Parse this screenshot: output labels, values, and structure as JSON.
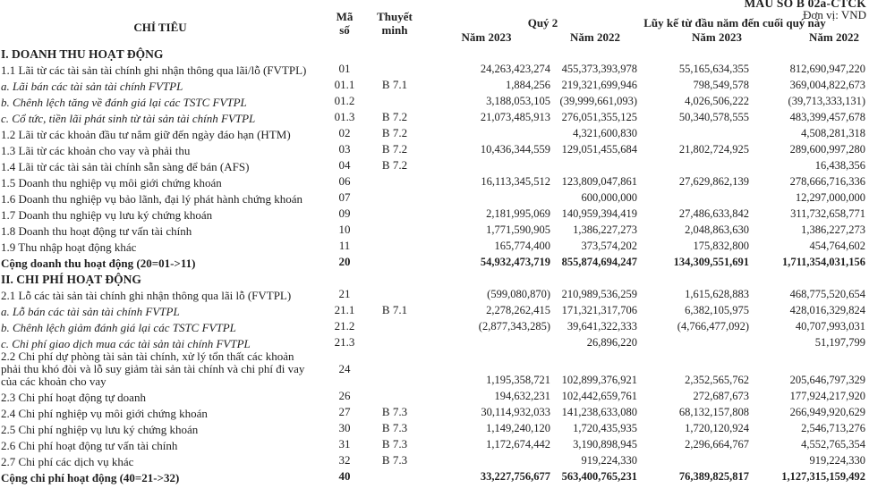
{
  "page": {
    "form_label": "MẪU SỐ B 02a-CTCK",
    "unit_label": "Đơn vị: VND",
    "text_color": "#1f1f1f",
    "background_color": "#ffffff"
  },
  "table": {
    "headers": {
      "criteria": "CHỈ TIÊU",
      "code_line1": "Mã",
      "code_line2": "số",
      "note_line1": "Thuyết",
      "note_line2": "minh",
      "group_q2": "Quý 2",
      "group_ytd": "Lũy kế từ đầu năm đến cuối quý này",
      "year_2023": "Năm 2023",
      "year_2022": "Năm 2022"
    },
    "rows": [
      {
        "style": "section",
        "label": "I. DOANH THU HOẠT ĐỘNG"
      },
      {
        "style": "item",
        "label": "1.1 Lãi từ các tài sản tài chính ghi nhận thông qua lãi/lỗ (FVTPL)",
        "code": "01",
        "q2_2023": "24,263,423,274",
        "q2_2022": "455,373,393,978",
        "ytd_2023": "55,165,634,355",
        "ytd_2022": "812,690,947,220"
      },
      {
        "style": "sub",
        "label": "a. Lãi bán các tài sản tài chính FVTPL",
        "code": "01.1",
        "note": "B 7.1",
        "q2_2023": "1,884,256",
        "q2_2022": "219,321,699,946",
        "ytd_2023": "798,549,578",
        "ytd_2022": "369,004,822,673"
      },
      {
        "style": "sub",
        "label": "b. Chênh lệch tăng về đánh giá lại các TSTC FVTPL",
        "code": "01.2",
        "q2_2023": "3,188,053,105",
        "q2_2022": "(39,999,661,093)",
        "ytd_2023": "4,026,506,222",
        "ytd_2022": "(39,713,333,131)"
      },
      {
        "style": "sub",
        "label": "c. Cổ tức, tiền lãi phát sinh từ tài sản tài chính FVTPL",
        "code": "01.3",
        "note": "B 7.2",
        "q2_2023": "21,073,485,913",
        "q2_2022": "276,051,355,125",
        "ytd_2023": "50,340,578,555",
        "ytd_2022": "483,399,457,678"
      },
      {
        "style": "item",
        "label": "1.2 Lãi từ các khoản đầu tư nắm giữ đến ngày đáo hạn (HTM)",
        "code": "02",
        "note": "B 7.2",
        "q2_2022": "4,321,600,830",
        "ytd_2022": "4,508,281,318"
      },
      {
        "style": "item",
        "label": "1.3 Lãi từ các khoản cho vay và phải thu",
        "code": "03",
        "note": "B 7.2",
        "q2_2023": "10,436,344,559",
        "q2_2022": "129,051,455,684",
        "ytd_2023": "21,802,724,925",
        "ytd_2022": "289,600,997,280"
      },
      {
        "style": "item",
        "label": "1.4 Lãi từ các tài sản tài chính sẵn sàng để bán (AFS)",
        "code": "04",
        "note": "B 7.2",
        "ytd_2022": "16,438,356"
      },
      {
        "style": "item",
        "label": "1.5 Doanh thu nghiệp vụ môi giới chứng khoán",
        "code": "06",
        "q2_2023": "16,113,345,512",
        "q2_2022": "123,809,047,861",
        "ytd_2023": "27,629,862,139",
        "ytd_2022": "278,666,716,336"
      },
      {
        "style": "item",
        "label": "1.6 Doanh thu nghiệp vụ bảo lãnh, đại lý phát hành chứng khoán",
        "code": "07",
        "q2_2022": "600,000,000",
        "ytd_2022": "12,297,000,000"
      },
      {
        "style": "item",
        "label": "1.7 Doanh thu nghiệp vụ lưu ký chứng khoán",
        "code": "09",
        "q2_2023": "2,181,995,069",
        "q2_2022": "140,959,394,419",
        "ytd_2023": "27,486,633,842",
        "ytd_2022": "311,732,658,771"
      },
      {
        "style": "item",
        "label": "1.8 Doanh thu hoạt động tư vấn tài chính",
        "code": "10",
        "q2_2023": "1,771,590,905",
        "q2_2022": "1,386,227,273",
        "ytd_2023": "2,048,863,630",
        "ytd_2022": "1,386,227,273"
      },
      {
        "style": "item",
        "label": "1.9 Thu nhập hoạt động khác",
        "code": "11",
        "q2_2023": "165,774,400",
        "q2_2022": "373,574,202",
        "ytd_2023": "175,832,800",
        "ytd_2022": "454,764,602"
      },
      {
        "style": "total",
        "label": "Cộng doanh thu hoạt động (20=01->11)",
        "code": "20",
        "q2_2023": "54,932,473,719",
        "q2_2022": "855,874,694,247",
        "ytd_2023": "134,309,551,691",
        "ytd_2022": "1,711,354,031,156"
      },
      {
        "style": "section",
        "label": "II. CHI PHÍ HOẠT ĐỘNG"
      },
      {
        "style": "item",
        "label": "2.1 Lỗ các tài sản tài chính ghi nhận thông qua lãi lỗ (FVTPL)",
        "code": "21",
        "q2_2023": "(599,080,870)",
        "q2_2022": "210,989,536,259",
        "ytd_2023": "1,615,628,883",
        "ytd_2022": "468,775,520,654"
      },
      {
        "style": "sub",
        "label": "a. Lỗ bán các tài sản tài chính FVTPL",
        "code": "21.1",
        "note": "B 7.1",
        "q2_2023": "2,278,262,415",
        "q2_2022": "171,321,317,706",
        "ytd_2023": "6,382,105,975",
        "ytd_2022": "428,016,329,824"
      },
      {
        "style": "sub",
        "label": "b. Chênh lệch giảm đánh giá lại các TSTC FVTPL",
        "code": "21.2",
        "q2_2023": "(2,877,343,285)",
        "q2_2022": "39,641,322,333",
        "ytd_2023": "(4,766,477,092)",
        "ytd_2022": "40,707,993,031"
      },
      {
        "style": "sub",
        "label": "c. Chi phí giao dịch mua các tài sản tài chính FVTPL",
        "code": "21.3",
        "q2_2022": "26,896,220",
        "ytd_2022": "51,197,799"
      },
      {
        "style": "item",
        "code_middle": true,
        "label": "2.2 Chi phí dự phòng tài sản tài chính, xử lý tổn thất các khoản phải thu khó đòi và lỗ suy giảm tài sản tài chính và chi phí đi vay của các khoản cho vay",
        "code": "24",
        "q2_2023": "1,195,358,721",
        "q2_2022": "102,899,376,921",
        "ytd_2023": "2,352,565,762",
        "ytd_2022": "205,646,797,329"
      },
      {
        "style": "item",
        "label": "2.3 Chi phí hoạt động tự doanh",
        "code": "26",
        "q2_2023": "194,632,231",
        "q2_2022": "102,442,659,761",
        "ytd_2023": "272,687,673",
        "ytd_2022": "177,924,217,920"
      },
      {
        "style": "item",
        "label": "2.4 Chi phí nghiệp vụ môi giới chứng khoán",
        "code": "27",
        "note": "B 7.3",
        "q2_2023": "30,114,932,033",
        "q2_2022": "141,238,633,080",
        "ytd_2023": "68,132,157,808",
        "ytd_2022": "266,949,920,629"
      },
      {
        "style": "item",
        "label": "2.5 Chi phí nghiệp vụ lưu ký chứng khoán",
        "code": "30",
        "note": "B 7.3",
        "q2_2023": "1,149,240,120",
        "q2_2022": "1,720,435,935",
        "ytd_2023": "1,720,120,924",
        "ytd_2022": "2,546,713,276"
      },
      {
        "style": "item",
        "label": "2.6 Chi phí hoạt động tư vấn tài chính",
        "code": "31",
        "note": "B 7.3",
        "q2_2023": "1,172,674,442",
        "q2_2022": "3,190,898,945",
        "ytd_2023": "2,296,664,767",
        "ytd_2022": "4,552,765,354"
      },
      {
        "style": "item",
        "label": "2.7 Chi phí các dịch vụ khác",
        "code": "32",
        "note": "B 7.3",
        "q2_2022": "919,224,330",
        "ytd_2022": "919,224,330"
      },
      {
        "style": "total",
        "label": "Cộng chi phí hoạt động (40=21->32)",
        "code": "40",
        "q2_2023": "33,227,756,677",
        "q2_2022": "563,400,765,231",
        "ytd_2023": "76,389,825,817",
        "ytd_2022": "1,127,315,159,492"
      }
    ]
  }
}
